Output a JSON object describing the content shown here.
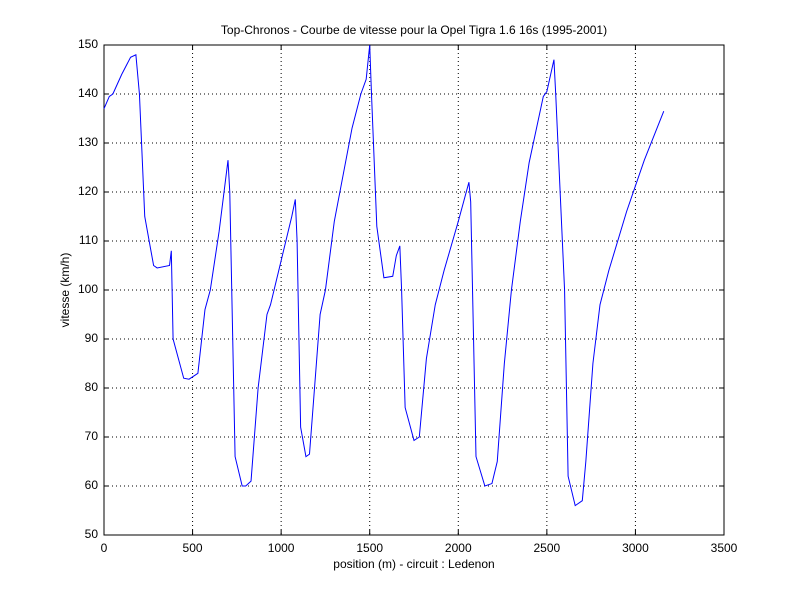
{
  "chart_data": {
    "type": "line",
    "title": "Top-Chronos - Courbe de vitesse pour la Opel Tigra 1.6 16s (1995-2001)",
    "x_label": "position (m) - circuit : Ledenon",
    "y_label": "vitesse (km/h)",
    "color": "#0000ff",
    "grid": true,
    "x": [
      0,
      30,
      50,
      100,
      150,
      180,
      200,
      230,
      280,
      300,
      370,
      380,
      390,
      450,
      480,
      530,
      570,
      600,
      650,
      700,
      710,
      740,
      780,
      800,
      830,
      870,
      920,
      940,
      1000,
      1060,
      1080,
      1090,
      1110,
      1140,
      1160,
      1220,
      1250,
      1300,
      1400,
      1450,
      1480,
      1500,
      1510,
      1540,
      1580,
      1630,
      1650,
      1670,
      1680,
      1700,
      1750,
      1780,
      1820,
      1870,
      1920,
      2000,
      2060,
      2070,
      2100,
      2150,
      2190,
      2220,
      2260,
      2300,
      2350,
      2400,
      2480,
      2500,
      2540,
      2550,
      2600,
      2620,
      2660,
      2700,
      2720,
      2760,
      2800,
      2850,
      2950,
      3050,
      3160
    ],
    "values": [
      137,
      139.5,
      140,
      144,
      147.5,
      148,
      140,
      115,
      105,
      104.5,
      105,
      108,
      90,
      82,
      81.8,
      83,
      96,
      100,
      112,
      126.5,
      120,
      66,
      60,
      60,
      61,
      80,
      95,
      97,
      106,
      115,
      118.5,
      110,
      72,
      66,
      66.5,
      95,
      100,
      114,
      133,
      140,
      143,
      150,
      140,
      113,
      102.5,
      102.8,
      107,
      109,
      100,
      76,
      69.3,
      70,
      86,
      97,
      104,
      114,
      122,
      118,
      66,
      60,
      60.5,
      65,
      85,
      100,
      114,
      126,
      139.5,
      140.5,
      147,
      140,
      100,
      62,
      56,
      57,
      65,
      85,
      97,
      104,
      116,
      126.5,
      136.5
    ],
    "xlim": [
      0,
      3500
    ],
    "xticks": [
      0,
      500,
      1000,
      1500,
      2000,
      2500,
      3000,
      3500
    ],
    "ylim": [
      50,
      150
    ],
    "yticks": [
      50,
      60,
      70,
      80,
      90,
      100,
      110,
      120,
      130,
      140,
      150
    ]
  }
}
